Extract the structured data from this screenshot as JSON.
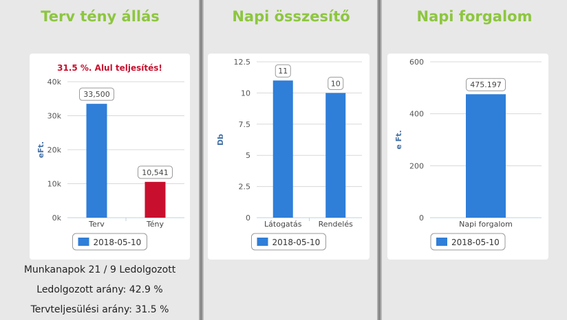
{
  "panels": [
    {
      "title": "Terv tény állás",
      "chart_data": {
        "type": "bar",
        "title": "31.5 %. Alul teljesítés!",
        "ylabel": "eFt.",
        "categories": [
          "Terv",
          "Tény"
        ],
        "values": [
          33500,
          10541
        ],
        "value_labels": [
          "33,500",
          "10,541"
        ],
        "bar_colors": [
          "#2f7ed8",
          "#c8102e"
        ],
        "ylim": [
          0,
          40000
        ],
        "yticks": [
          0,
          10000,
          20000,
          30000,
          40000
        ],
        "ytick_labels": [
          "0k",
          "10k",
          "20k",
          "30k",
          "40k"
        ],
        "legend": "2018-05-10",
        "legend_color": "#2f7ed8",
        "grid": true
      }
    },
    {
      "title": "Napi összesítő",
      "chart_data": {
        "type": "bar",
        "title": "",
        "ylabel": "Db",
        "categories": [
          "Látogatás",
          "Rendelés"
        ],
        "values": [
          11,
          10
        ],
        "value_labels": [
          "11",
          "10"
        ],
        "bar_colors": [
          "#2f7ed8",
          "#2f7ed8"
        ],
        "ylim": [
          0,
          12.5
        ],
        "yticks": [
          0,
          2.5,
          5,
          7.5,
          10,
          12.5
        ],
        "ytick_labels": [
          "0",
          "2.5",
          "5",
          "7.5",
          "10",
          "12.5"
        ],
        "legend": "2018-05-10",
        "legend_color": "#2f7ed8",
        "grid": true
      }
    },
    {
      "title": "Napi forgalom",
      "chart_data": {
        "type": "bar",
        "title": "",
        "ylabel": "e Ft.",
        "categories": [
          "Napi forgalom"
        ],
        "values": [
          475.197
        ],
        "value_labels": [
          "475.197"
        ],
        "bar_colors": [
          "#2f7ed8"
        ],
        "ylim": [
          0,
          600
        ],
        "yticks": [
          0,
          200,
          400,
          600
        ],
        "ytick_labels": [
          "0",
          "200",
          "400",
          "600"
        ],
        "legend": "2018-05-10",
        "legend_color": "#2f7ed8",
        "grid": true
      }
    }
  ],
  "stats": {
    "workdays": "Munkanapok 21 / 9 Ledolgozott",
    "worked_ratio": "Ledolgozott arány: 42.9 %",
    "plan_ratio": "Tervteljesülési arány: 31.5 %"
  }
}
